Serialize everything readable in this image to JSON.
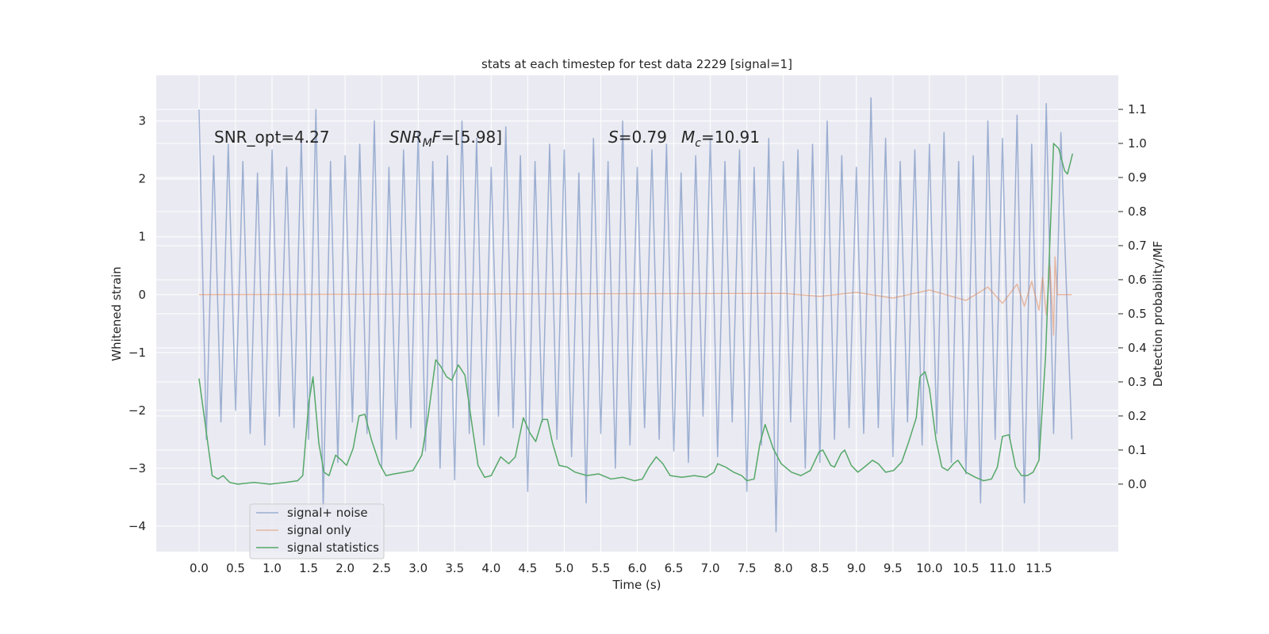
{
  "chart_data": {
    "type": "line",
    "title": "stats at each timestep for test data 2229 [signal=1]",
    "xlabel": "Time (s)",
    "ylabel": "Whitened strain",
    "y2label": "Detection probability/MF",
    "xlim": [
      -0.586,
      12.586
    ],
    "ylim": [
      -4.44,
      3.79
    ],
    "y2lim": [
      -0.198,
      1.2
    ],
    "xticks": [
      {
        "value": 0,
        "label": "0.0"
      },
      {
        "value": 0.5,
        "label": "0.5"
      },
      {
        "value": 1,
        "label": "1.0"
      },
      {
        "value": 1.5,
        "label": "1.5"
      },
      {
        "value": 2,
        "label": "2.0"
      },
      {
        "value": 2.5,
        "label": "2.5"
      },
      {
        "value": 3,
        "label": "3.0"
      },
      {
        "value": 3.5,
        "label": "3.5"
      },
      {
        "value": 4,
        "label": "4.0"
      },
      {
        "value": 4.5,
        "label": "4.5"
      },
      {
        "value": 5,
        "label": "5.0"
      },
      {
        "value": 5.5,
        "label": "5.5"
      },
      {
        "value": 6,
        "label": "6.0"
      },
      {
        "value": 6.5,
        "label": "6.5"
      },
      {
        "value": 7,
        "label": "7.0"
      },
      {
        "value": 7.5,
        "label": "7.5"
      },
      {
        "value": 8,
        "label": "8.0"
      },
      {
        "value": 8.5,
        "label": "8.5"
      },
      {
        "value": 9,
        "label": "9.0"
      },
      {
        "value": 9.5,
        "label": "9.5"
      },
      {
        "value": 10,
        "label": "10.0"
      },
      {
        "value": 10.5,
        "label": "10.5"
      },
      {
        "value": 11,
        "label": "11.0"
      },
      {
        "value": 11.5,
        "label": "11.5"
      }
    ],
    "yticks": [
      {
        "value": -4,
        "label": "−4"
      },
      {
        "value": -3,
        "label": "−3"
      },
      {
        "value": -2,
        "label": "−2"
      },
      {
        "value": -1,
        "label": "−1"
      },
      0,
      1,
      2,
      3
    ],
    "y2ticks": [
      {
        "value": 0,
        "label": "0.0"
      },
      {
        "value": 0.1,
        "label": "0.1"
      },
      {
        "value": 0.2,
        "label": "0.2"
      },
      {
        "value": 0.3,
        "label": "0.3"
      },
      {
        "value": 0.4,
        "label": "0.4"
      },
      {
        "value": 0.5,
        "label": "0.5"
      },
      {
        "value": 0.6,
        "label": "0.6"
      },
      {
        "value": 0.7,
        "label": "0.7"
      },
      {
        "value": 0.8,
        "label": "0.8"
      },
      {
        "value": 0.9,
        "label": "0.9"
      },
      {
        "value": 1,
        "label": "1.0"
      },
      {
        "value": 1.1,
        "label": "1.1"
      }
    ],
    "grid": true,
    "legend": "lower left",
    "annotations": [
      [
        {
          "text": "SNR_opt=4.27",
          "style": "normal"
        }
      ],
      [
        {
          "text": "SNR",
          "style": "italic"
        },
        {
          "text": "M",
          "style": "sub"
        },
        {
          "text": "F",
          "style": "italic"
        },
        {
          "text": "=[5.98]",
          "style": "normal"
        }
      ],
      [
        {
          "text": "S",
          "style": "italic"
        },
        {
          "text": "=0.79",
          "style": "normal"
        }
      ],
      [
        {
          "text": "M",
          "style": "italic"
        },
        {
          "text": "c",
          "style": "sub"
        },
        {
          "text": "=10.91",
          "style": "normal"
        }
      ]
    ],
    "series": [
      {
        "name": "signal+ noise",
        "color": "#4c72b0",
        "opacity": 0.5,
        "axis": "y",
        "x": [
          0,
          0.1,
          0.2,
          0.3,
          0.4,
          0.5,
          0.6,
          0.7,
          0.8,
          0.9,
          1,
          1.1,
          1.2,
          1.3,
          1.4,
          1.5,
          1.6,
          1.7,
          1.8,
          1.9,
          2,
          2.1,
          2.2,
          2.3,
          2.4,
          2.5,
          2.6,
          2.7,
          2.8,
          2.9,
          3,
          3.1,
          3.2,
          3.3,
          3.4,
          3.5,
          3.6,
          3.7,
          3.8,
          3.9,
          4,
          4.1,
          4.2,
          4.3,
          4.4,
          4.5,
          4.6,
          4.7,
          4.8,
          4.9,
          5,
          5.1,
          5.2,
          5.3,
          5.4,
          5.5,
          5.6,
          5.7,
          5.8,
          5.9,
          6,
          6.1,
          6.2,
          6.3,
          6.4,
          6.5,
          6.6,
          6.7,
          6.8,
          6.9,
          7,
          7.1,
          7.2,
          7.3,
          7.4,
          7.5,
          7.6,
          7.7,
          7.8,
          7.9,
          8,
          8.1,
          8.2,
          8.3,
          8.4,
          8.5,
          8.6,
          8.7,
          8.8,
          8.9,
          9,
          9.1,
          9.2,
          9.3,
          9.4,
          9.5,
          9.6,
          9.7,
          9.8,
          9.9,
          10,
          10.1,
          10.2,
          10.3,
          10.4,
          10.5,
          10.6,
          10.7,
          10.8,
          10.9,
          11,
          11.1,
          11.2,
          11.3,
          11.4,
          11.5,
          11.6,
          11.7,
          11.8,
          11.95
        ],
        "values": [
          3.2,
          -2.5,
          2.4,
          -2.2,
          2.6,
          -2.0,
          2.3,
          -2.4,
          2.1,
          -2.6,
          2.5,
          -2.1,
          2.2,
          -2.3,
          2.7,
          -2.5,
          3.2,
          -3.7,
          2.3,
          -2.9,
          2.4,
          -2.2,
          2.6,
          -2.4,
          3.0,
          -3.0,
          2.2,
          -2.5,
          2.5,
          -2.3,
          2.8,
          -2.7,
          2.3,
          -3.0,
          2.4,
          -3.2,
          3.0,
          -2.4,
          2.7,
          -2.6,
          2.2,
          -2.1,
          2.9,
          -2.3,
          2.4,
          -3.4,
          2.3,
          -2.2,
          2.6,
          -2.5,
          2.5,
          -2.8,
          2.1,
          -3.6,
          2.7,
          -2.4,
          2.3,
          -3.0,
          3.0,
          -2.6,
          2.2,
          -2.3,
          2.5,
          -2.5,
          2.6,
          -2.7,
          2.1,
          -2.9,
          2.4,
          -2.1,
          2.7,
          -2.8,
          2.3,
          -2.2,
          2.5,
          -3.4,
          2.2,
          -2.6,
          2.7,
          -4.1,
          2.3,
          -2.2,
          2.5,
          -3.0,
          2.6,
          -2.9,
          3.0,
          -2.5,
          2.4,
          -2.3,
          2.2,
          -2.4,
          3.4,
          -2.3,
          2.7,
          -2.8,
          2.3,
          -2.2,
          2.5,
          -2.6,
          2.6,
          -2.4,
          2.8,
          -2.9,
          2.3,
          -3.1,
          2.4,
          -3.6,
          3.0,
          -2.5,
          2.7,
          -2.5,
          3.1,
          -3.6,
          2.6,
          -2.8,
          3.3,
          -2.4,
          2.8,
          -2.5
        ]
      },
      {
        "name": "signal only",
        "color": "#dd8452",
        "opacity": 0.5,
        "axis": "y",
        "x": [
          0,
          8,
          8.5,
          9,
          9.5,
          10,
          10.5,
          10.8,
          11,
          11.2,
          11.3,
          11.4,
          11.5,
          11.55,
          11.6,
          11.65,
          11.7,
          11.72,
          11.75,
          11.8,
          11.95
        ],
        "values": [
          0,
          0.02,
          -0.03,
          0.04,
          -0.06,
          0.08,
          -0.1,
          0.13,
          -0.15,
          0.18,
          -0.2,
          0.23,
          -0.27,
          0.3,
          -0.35,
          0.5,
          -0.7,
          0.65,
          0,
          0,
          0
        ]
      },
      {
        "name": "signal statistics",
        "color": "#55a868",
        "opacity": 1,
        "axis": "y2",
        "x": [
          0,
          0.12,
          0.18,
          0.26,
          0.33,
          0.42,
          0.53,
          0.75,
          0.97,
          1.18,
          1.35,
          1.42,
          1.5,
          1.56,
          1.64,
          1.71,
          1.78,
          1.87,
          1.95,
          2.02,
          2.11,
          2.19,
          2.27,
          2.36,
          2.47,
          2.56,
          2.67,
          2.81,
          2.93,
          3.05,
          3.14,
          3.24,
          3.31,
          3.39,
          3.46,
          3.55,
          3.64,
          3.75,
          3.82,
          3.91,
          4,
          4.13,
          4.24,
          4.33,
          4.44,
          4.53,
          4.61,
          4.7,
          4.77,
          4.84,
          4.93,
          5.04,
          5.15,
          5.31,
          5.47,
          5.64,
          5.8,
          5.96,
          6.07,
          6.16,
          6.26,
          6.35,
          6.45,
          6.61,
          6.78,
          6.94,
          7.05,
          7.1,
          7.21,
          7.32,
          7.43,
          7.5,
          7.6,
          7.68,
          7.75,
          7.86,
          7.97,
          8.11,
          8.24,
          8.37,
          8.49,
          8.54,
          8.65,
          8.7,
          8.79,
          8.84,
          8.93,
          9.02,
          9.11,
          9.22,
          9.3,
          9.4,
          9.51,
          9.62,
          9.71,
          9.82,
          9.87,
          9.94,
          10,
          10.09,
          10.17,
          10.25,
          10.33,
          10.39,
          10.5,
          10.63,
          10.74,
          10.85,
          10.93,
          11,
          11.09,
          11.18,
          11.26,
          11.34,
          11.42,
          11.5,
          11.59,
          11.7,
          11.77,
          11.85,
          11.89,
          11.96
        ],
        "values": [
          0.31,
          0.12,
          0.025,
          0.015,
          0.025,
          0.005,
          0,
          0.005,
          0,
          0.005,
          0.01,
          0.025,
          0.235,
          0.315,
          0.12,
          0.035,
          0.025,
          0.085,
          0.07,
          0.055,
          0.105,
          0.2,
          0.205,
          0.13,
          0.06,
          0.025,
          0.03,
          0.035,
          0.04,
          0.085,
          0.205,
          0.365,
          0.345,
          0.315,
          0.305,
          0.35,
          0.32,
          0.155,
          0.055,
          0.02,
          0.025,
          0.08,
          0.06,
          0.08,
          0.195,
          0.15,
          0.125,
          0.19,
          0.19,
          0.12,
          0.055,
          0.05,
          0.035,
          0.025,
          0.03,
          0.015,
          0.02,
          0.01,
          0.015,
          0.05,
          0.08,
          0.06,
          0.025,
          0.02,
          0.025,
          0.02,
          0.035,
          0.06,
          0.05,
          0.035,
          0.025,
          0.01,
          0.015,
          0.12,
          0.175,
          0.105,
          0.06,
          0.035,
          0.025,
          0.04,
          0.095,
          0.1,
          0.055,
          0.05,
          0.09,
          0.1,
          0.055,
          0.035,
          0.05,
          0.07,
          0.06,
          0.035,
          0.04,
          0.065,
          0.12,
          0.195,
          0.315,
          0.33,
          0.28,
          0.13,
          0.05,
          0.04,
          0.06,
          0.07,
          0.035,
          0.02,
          0.01,
          0.015,
          0.05,
          0.14,
          0.145,
          0.05,
          0.025,
          0.025,
          0.035,
          0.07,
          0.375,
          1.0,
          0.985,
          0.92,
          0.91,
          0.97
        ]
      }
    ]
  }
}
